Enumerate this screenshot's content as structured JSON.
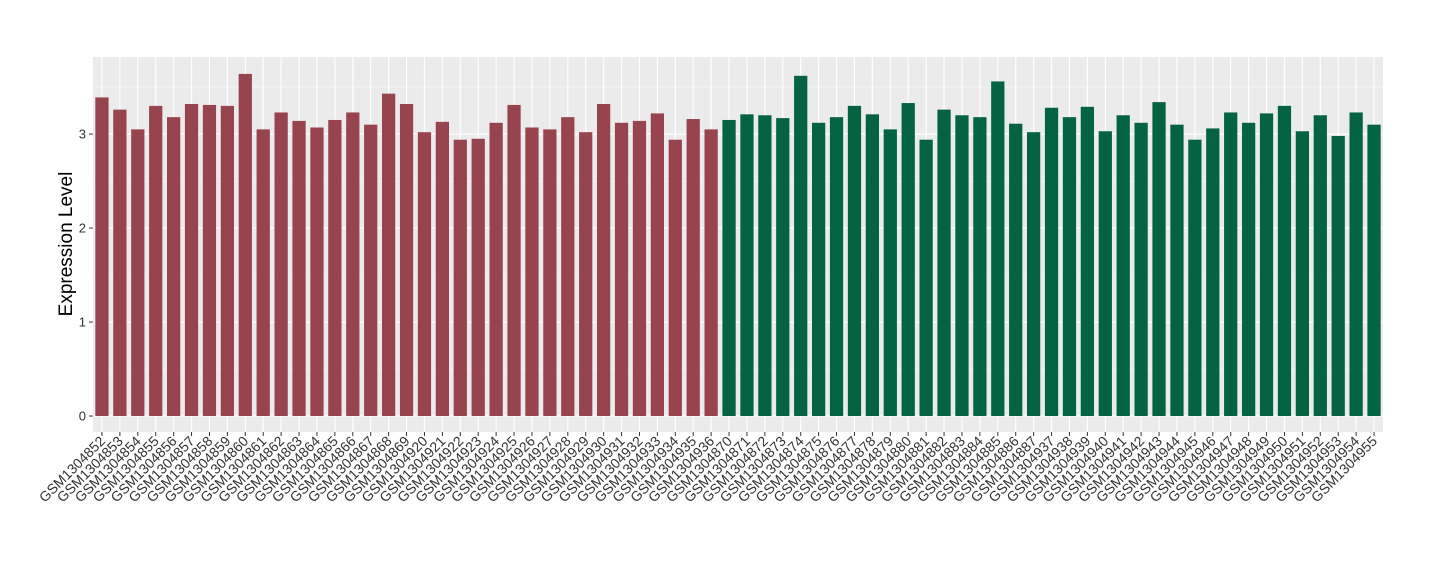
{
  "chart_data": {
    "type": "bar",
    "ylabel": "Expression Level",
    "categories": [
      "GSM1304852",
      "GSM1304853",
      "GSM1304854",
      "GSM1304855",
      "GSM1304856",
      "GSM1304857",
      "GSM1304858",
      "GSM1304859",
      "GSM1304860",
      "GSM1304861",
      "GSM1304862",
      "GSM1304863",
      "GSM1304864",
      "GSM1304865",
      "GSM1304866",
      "GSM1304867",
      "GSM1304868",
      "GSM1304869",
      "GSM1304920",
      "GSM1304921",
      "GSM1304922",
      "GSM1304923",
      "GSM1304924",
      "GSM1304925",
      "GSM1304926",
      "GSM1304927",
      "GSM1304928",
      "GSM1304929",
      "GSM1304930",
      "GSM1304931",
      "GSM1304932",
      "GSM1304933",
      "GSM1304934",
      "GSM1304935",
      "GSM1304936",
      "GSM1304870",
      "GSM1304871",
      "GSM1304872",
      "GSM1304873",
      "GSM1304874",
      "GSM1304875",
      "GSM1304876",
      "GSM1304877",
      "GSM1304878",
      "GSM1304879",
      "GSM1304880",
      "GSM1304881",
      "GSM1304882",
      "GSM1304883",
      "GSM1304884",
      "GSM1304885",
      "GSM1304886",
      "GSM1304887",
      "GSM1304937",
      "GSM1304938",
      "GSM1304939",
      "GSM1304940",
      "GSM1304941",
      "GSM1304942",
      "GSM1304943",
      "GSM1304944",
      "GSM1304945",
      "GSM1304946",
      "GSM1304947",
      "GSM1304948",
      "GSM1304949",
      "GSM1304950",
      "GSM1304951",
      "GSM1304952",
      "GSM1304953",
      "GSM1304954",
      "GSM1304955"
    ],
    "values": [
      3.39,
      3.26,
      3.05,
      3.3,
      3.18,
      3.32,
      3.31,
      3.3,
      3.64,
      3.05,
      3.23,
      3.14,
      3.07,
      3.15,
      3.23,
      3.1,
      3.43,
      3.32,
      3.02,
      3.13,
      2.94,
      2.95,
      3.12,
      3.31,
      3.07,
      3.05,
      3.18,
      3.02,
      3.32,
      3.12,
      3.14,
      3.22,
      2.94,
      3.16,
      3.05,
      3.15,
      3.21,
      3.2,
      3.17,
      3.62,
      3.12,
      3.18,
      3.3,
      3.21,
      3.05,
      3.33,
      2.94,
      3.26,
      3.2,
      3.18,
      3.56,
      3.11,
      3.02,
      3.28,
      3.18,
      3.29,
      3.03,
      3.2,
      3.12,
      3.34,
      3.1,
      2.94,
      3.06,
      3.23,
      3.12,
      3.22,
      3.3,
      3.03,
      3.2,
      2.98,
      3.23,
      3.1
    ],
    "colors": [
      "#98444f",
      "#98444f",
      "#98444f",
      "#98444f",
      "#98444f",
      "#98444f",
      "#98444f",
      "#98444f",
      "#98444f",
      "#98444f",
      "#98444f",
      "#98444f",
      "#98444f",
      "#98444f",
      "#98444f",
      "#98444f",
      "#98444f",
      "#98444f",
      "#98444f",
      "#98444f",
      "#98444f",
      "#98444f",
      "#98444f",
      "#98444f",
      "#98444f",
      "#98444f",
      "#98444f",
      "#98444f",
      "#98444f",
      "#98444f",
      "#98444f",
      "#98444f",
      "#98444f",
      "#98444f",
      "#98444f",
      "#046442",
      "#046442",
      "#046442",
      "#046442",
      "#046442",
      "#046442",
      "#046442",
      "#046442",
      "#046442",
      "#046442",
      "#046442",
      "#046442",
      "#046442",
      "#046442",
      "#046442",
      "#046442",
      "#046442",
      "#046442",
      "#046442",
      "#046442",
      "#046442",
      "#046442",
      "#046442",
      "#046442",
      "#046442",
      "#046442",
      "#046442",
      "#046442",
      "#046442",
      "#046442",
      "#046442",
      "#046442",
      "#046442",
      "#046442",
      "#046442",
      "#046442",
      "#046442"
    ],
    "ylim": [
      -0.17,
      3.82
    ],
    "yticks": [
      0,
      1,
      2,
      3
    ],
    "grid": true
  }
}
